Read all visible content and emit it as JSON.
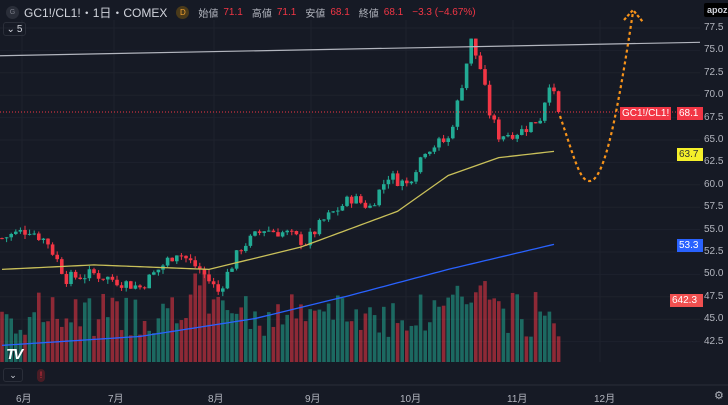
{
  "header": {
    "symbol_icon": "G",
    "title": "GC1!/CL1!・1日・COMEX",
    "d_badge": "D",
    "open_label": "始値",
    "open": "71.1",
    "high_label": "高値",
    "high": "71.1",
    "low_label": "安値",
    "low": "68.1",
    "close_label": "終値",
    "close": "68.1",
    "change": "−3.3 (−4.67%)"
  },
  "collapse": {
    "icon": "chevron-down-icon",
    "count": "5"
  },
  "apoz": "apoz",
  "price_axis": [
    "77.5",
    "75.0",
    "72.5",
    "70.0",
    "67.5",
    "65.0",
    "62.5",
    "60.0",
    "57.5",
    "55.0",
    "52.5",
    "50.0",
    "47.5",
    "45.0",
    "42.5"
  ],
  "badges": {
    "symbol": "GC1!/CL1!",
    "last": "68.1",
    "ma_short": "63.7",
    "ma_long": "53.3",
    "volume": "642.3"
  },
  "time_axis": [
    "6月",
    "7月",
    "8月",
    "9月",
    "10月",
    "11月",
    "12月"
  ],
  "logo": "TV",
  "colors": {
    "up": "#22ab94",
    "down": "#f23645",
    "ma_short": "#c9c05a",
    "ma_long": "#2962ff",
    "forecast": "#f7931a"
  },
  "chart_data": {
    "type": "candlestick",
    "symbol": "GC1!/CL1!",
    "interval": "1日",
    "ylim": [
      40.5,
      79
    ],
    "price_path": [
      [
        0,
        54
      ],
      [
        6,
        55
      ],
      [
        10,
        53.5
      ],
      [
        14,
        49.5
      ],
      [
        20,
        50
      ],
      [
        30,
        48.5
      ],
      [
        38,
        52.5
      ],
      [
        43,
        50.5
      ],
      [
        47,
        48
      ],
      [
        52,
        53
      ],
      [
        57,
        55
      ],
      [
        62,
        54.5
      ],
      [
        66,
        53.5
      ],
      [
        70,
        56
      ],
      [
        76,
        58.5
      ],
      [
        80,
        57.5
      ],
      [
        84,
        61
      ],
      [
        88,
        60
      ],
      [
        92,
        64
      ],
      [
        97,
        65
      ],
      [
        99,
        69
      ],
      [
        102,
        76
      ],
      [
        104,
        73
      ],
      [
        106,
        68
      ],
      [
        108,
        65.5
      ],
      [
        113,
        66
      ],
      [
        117,
        67.5
      ],
      [
        119,
        71.5
      ],
      [
        121,
        68.1
      ]
    ],
    "ma_short": [
      [
        0,
        50.5
      ],
      [
        20,
        51
      ],
      [
        45,
        50.5
      ],
      [
        65,
        53
      ],
      [
        86,
        57
      ],
      [
        97,
        61
      ],
      [
        108,
        63
      ],
      [
        120,
        63.7
      ]
    ],
    "ma_long": [
      [
        0,
        42
      ],
      [
        30,
        43
      ],
      [
        55,
        45
      ],
      [
        75,
        47.5
      ],
      [
        97,
        50.5
      ],
      [
        120,
        53.3
      ]
    ],
    "resistance": [
      [
        0,
        74.4
      ],
      [
        150,
        75.9
      ]
    ],
    "last_price": 68.1
  }
}
